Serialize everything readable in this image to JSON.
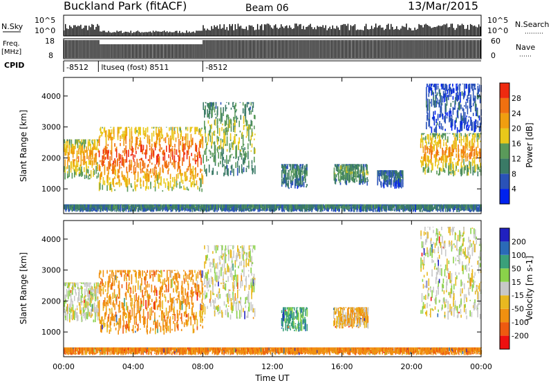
{
  "header": {
    "station": "Buckland Park (fitACF)",
    "beam": "Beam 06",
    "date": "13/Mar/2015"
  },
  "strips": {
    "nsky_label": "N.Sky",
    "nsky_ticks": [
      "10^5",
      "10^0"
    ],
    "nsky_right_ticks": [
      "10^5",
      "10^0"
    ],
    "nsearch_label": "N.Search",
    "freq_label": "Freq.",
    "freq_unit": "[MHz]",
    "freq_ticks": [
      "18",
      "8"
    ],
    "nave_ticks": [
      "60",
      "0"
    ],
    "nave_label": "Nave",
    "cpid_label": "CPID",
    "cpid_segments": [
      {
        "label": "-8512",
        "start": 0,
        "end": 2
      },
      {
        "label": "ltuseq (fost) 8511",
        "start": 2,
        "end": 8
      },
      {
        "label": "-8512",
        "start": 8,
        "end": 24
      }
    ]
  },
  "colors": {
    "power_scale": [
      "#0022ee",
      "#2a52b8",
      "#3a7a66",
      "#5a9a5a",
      "#e8c81a",
      "#f09e10",
      "#f07010",
      "#ee2a10"
    ],
    "velocity_scale": [
      "#ee1010",
      "#ee5a10",
      "#f09010",
      "#e8b820",
      "#c8c8c8",
      "#8ad24a",
      "#3aa07a",
      "#2a6ab8",
      "#2020c0"
    ]
  },
  "chart_data": [
    {
      "type": "heatmap",
      "title": "Power",
      "xlabel": "Time UT",
      "ylabel": "Slant Range [km]",
      "x_ticks": [
        "00:00",
        "04:00",
        "08:00",
        "12:00",
        "16:00",
        "20:00",
        "00:00"
      ],
      "x_range_hours": [
        0,
        24
      ],
      "y_ticks": [
        1000,
        2000,
        3000,
        4000
      ],
      "y_range_km": [
        200,
        4600
      ],
      "colorbar_label": "Power [dB]",
      "colorbar_ticks": [
        4,
        8,
        12,
        16,
        20,
        24,
        28
      ],
      "colorbar_range": [
        0,
        30
      ],
      "regions": [
        {
          "t0": 0.0,
          "t1": 2.0,
          "r0": 1300,
          "r1": 2600,
          "level": 20
        },
        {
          "t0": 2.0,
          "t1": 8.0,
          "r0": 900,
          "r1": 3000,
          "level": 24
        },
        {
          "t0": 8.0,
          "t1": 11.0,
          "r0": 1400,
          "r1": 3800,
          "level": 14
        },
        {
          "t0": 12.5,
          "t1": 14.0,
          "r0": 1000,
          "r1": 1800,
          "level": 10
        },
        {
          "t0": 15.5,
          "t1": 17.5,
          "r0": 1100,
          "r1": 1800,
          "level": 12
        },
        {
          "t0": 18.0,
          "t1": 19.5,
          "r0": 1000,
          "r1": 1600,
          "level": 8
        },
        {
          "t0": 20.5,
          "t1": 24.0,
          "r0": 1400,
          "r1": 2800,
          "level": 20
        },
        {
          "t0": 20.8,
          "t1": 24.0,
          "r0": 2800,
          "r1": 4400,
          "level": 6
        },
        {
          "t0": 0.0,
          "t1": 24.0,
          "r0": 250,
          "r1": 500,
          "level": 10
        }
      ]
    },
    {
      "type": "heatmap",
      "title": "Velocity",
      "xlabel": "Time UT",
      "ylabel": "Slant Range [km]",
      "x_ticks": [
        "00:00",
        "04:00",
        "08:00",
        "12:00",
        "16:00",
        "20:00",
        "00:00"
      ],
      "x_range_hours": [
        0,
        24
      ],
      "y_ticks": [
        1000,
        2000,
        3000,
        4000
      ],
      "y_range_km": [
        200,
        4600
      ],
      "colorbar_label": "Velocity [m s-1]",
      "colorbar_ticks": [
        "200",
        "100",
        "50",
        "15",
        "-15",
        "-50",
        "-100",
        "-200"
      ],
      "regions": [
        {
          "t0": 0.0,
          "t1": 2.0,
          "r0": 1300,
          "r1": 2600,
          "velocity": 0
        },
        {
          "t0": 2.0,
          "t1": 8.0,
          "r0": 900,
          "r1": 3000,
          "velocity": -50
        },
        {
          "t0": 8.0,
          "t1": 11.0,
          "r0": 1400,
          "r1": 3800,
          "velocity": 0
        },
        {
          "t0": 12.5,
          "t1": 14.0,
          "r0": 1000,
          "r1": 1800,
          "velocity": 50
        },
        {
          "t0": 15.5,
          "t1": 17.5,
          "r0": 1100,
          "r1": 1800,
          "velocity": -30
        },
        {
          "t0": 20.5,
          "t1": 24.0,
          "r0": 1400,
          "r1": 4400,
          "velocity": 0
        },
        {
          "t0": 0.0,
          "t1": 24.0,
          "r0": 250,
          "r1": 500,
          "velocity": -60
        }
      ]
    }
  ]
}
